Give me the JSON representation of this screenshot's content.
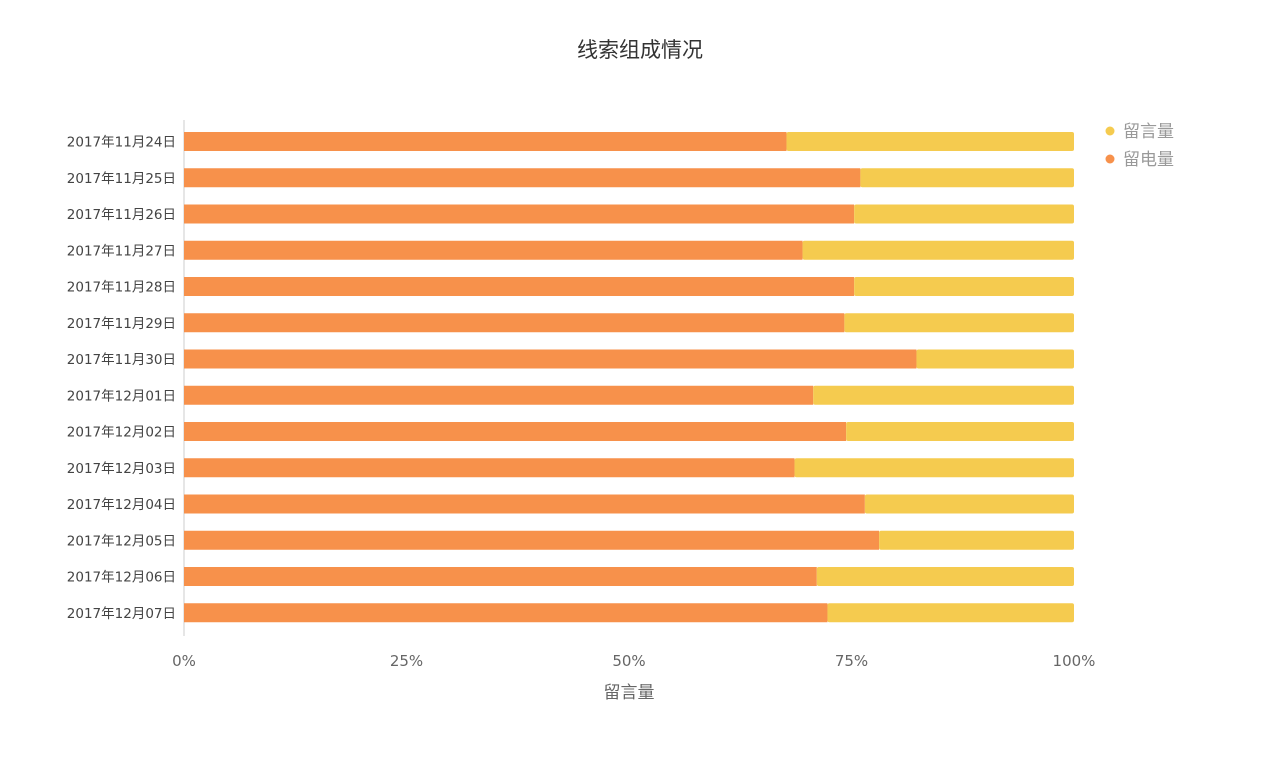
{
  "chart_data": {
    "type": "bar",
    "orientation": "horizontal",
    "stacked": "percent",
    "title": "线索组成情况",
    "xlabel": "留言量",
    "ylabel": "",
    "xlim": [
      0,
      100
    ],
    "x_ticks": [
      "0%",
      "25%",
      "50%",
      "75%",
      "100%"
    ],
    "grid": false,
    "legend_position": "top-right",
    "categories": [
      "2017年11月24日",
      "2017年11月25日",
      "2017年11月26日",
      "2017年11月27日",
      "2017年11月28日",
      "2017年11月29日",
      "2017年11月30日",
      "2017年12月01日",
      "2017年12月02日",
      "2017年12月03日",
      "2017年12月04日",
      "2017年12月05日",
      "2017年12月06日",
      "2017年12月07日"
    ],
    "series": [
      {
        "name": "留电量",
        "color": "#F7914B",
        "values": [
          67.7,
          76.0,
          75.3,
          69.5,
          75.3,
          74.2,
          82.3,
          70.7,
          74.4,
          68.6,
          76.5,
          78.1,
          71.1,
          72.3
        ]
      },
      {
        "name": "留言量",
        "color": "#F5CB4F",
        "values": [
          32.3,
          24.0,
          24.7,
          30.5,
          24.7,
          25.8,
          17.7,
          29.3,
          25.6,
          31.4,
          23.5,
          21.9,
          28.9,
          27.7
        ]
      }
    ],
    "legend": [
      "留言量",
      "留电量"
    ],
    "legend_colors": [
      "#F5CB4F",
      "#F7914B"
    ]
  }
}
